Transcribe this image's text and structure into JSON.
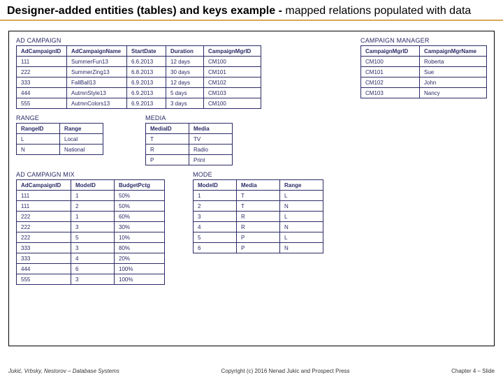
{
  "title": {
    "bold": "Designer-added entities (tables) and keys example - ",
    "rest": "mapped relations populated with data"
  },
  "colors": {
    "underline": "#d9a85b",
    "table_border": "#2a2a66",
    "table_text": "#2a2a66",
    "background": "#ffffff"
  },
  "tables": {
    "ad_campaign": {
      "label": "AD CAMPAIGN",
      "headers": [
        "AdCampaignID",
        "AdCampaignName",
        "StartDate",
        "Duration",
        "CampaignMgrID"
      ],
      "rows": [
        [
          "111",
          "SummerFun13",
          "6.6.2013",
          "12 days",
          "CM100"
        ],
        [
          "222",
          "SummerZing13",
          "6.8.2013",
          "30 days",
          "CM101"
        ],
        [
          "333",
          "FallBall13",
          "6.9.2013",
          "12 days",
          "CM102"
        ],
        [
          "444",
          "AutmnStyle13",
          "6.9.2013",
          "5 days",
          "CM103"
        ],
        [
          "555",
          "AutmnColors13",
          "6.9.2013",
          "3 days",
          "CM100"
        ]
      ]
    },
    "campaign_manager": {
      "label": "CAMPAIGN MANAGER",
      "headers": [
        "CampaignMgrID",
        "CampaignMgrName"
      ],
      "rows": [
        [
          "CM100",
          "Roberta"
        ],
        [
          "CM101",
          "Sue"
        ],
        [
          "CM102",
          "John"
        ],
        [
          "CM103",
          "Nancy"
        ]
      ]
    },
    "range": {
      "label": "RANGE",
      "headers": [
        "RangeID",
        "Range"
      ],
      "rows": [
        [
          "L",
          "Local"
        ],
        [
          "N",
          "National"
        ]
      ]
    },
    "media": {
      "label": "MEDIA",
      "headers": [
        "MediaID",
        "Media"
      ],
      "rows": [
        [
          "T",
          "TV"
        ],
        [
          "R",
          "Radio"
        ],
        [
          "P",
          "Print"
        ]
      ]
    },
    "ad_campaign_mix": {
      "label": "AD CAMPAIGN MIX",
      "headers": [
        "AdCampaignID",
        "ModeID",
        "BudgetPctg"
      ],
      "rows": [
        [
          "111",
          "1",
          "50%"
        ],
        [
          "111",
          "2",
          "50%"
        ],
        [
          "222",
          "1",
          "60%"
        ],
        [
          "222",
          "3",
          "30%"
        ],
        [
          "222",
          "5",
          "10%"
        ],
        [
          "333",
          "3",
          "80%"
        ],
        [
          "333",
          "4",
          "20%"
        ],
        [
          "444",
          "6",
          "100%"
        ],
        [
          "555",
          "3",
          "100%"
        ]
      ]
    },
    "mode": {
      "label": "MODE",
      "headers": [
        "ModeID",
        "Media",
        "Range"
      ],
      "rows": [
        [
          "1",
          "T",
          "L"
        ],
        [
          "2",
          "T",
          "N"
        ],
        [
          "3",
          "R",
          "L"
        ],
        [
          "4",
          "R",
          "N"
        ],
        [
          "5",
          "P",
          "L"
        ],
        [
          "6",
          "P",
          "N"
        ]
      ]
    }
  },
  "column_widths": {
    "ad_campaign": [
      72,
      86,
      56,
      54,
      82
    ],
    "campaign_manager": [
      84,
      96
    ],
    "range": [
      62,
      62
    ],
    "media": [
      62,
      62
    ],
    "ad_campaign_mix": [
      78,
      62,
      72
    ],
    "mode": [
      62,
      62,
      62
    ]
  },
  "footer": {
    "left": "Jukić, Vrbsky, Nestorov – Database Systems",
    "center": "Copyright (c) 2016 Nenad Jukic and Prospect Press",
    "right": "Chapter 4 – Slide"
  }
}
